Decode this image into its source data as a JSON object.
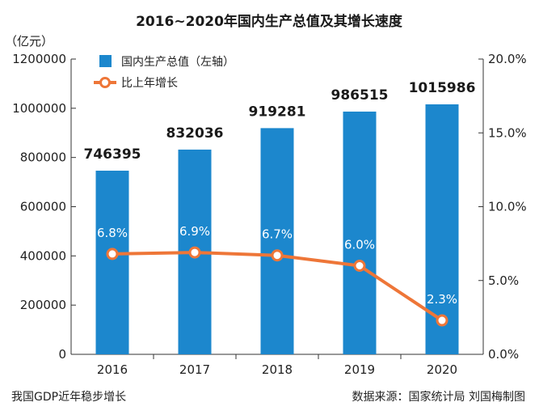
{
  "chart_data": {
    "type": "bar",
    "title": "2016~2020年国内生产总值及其增长速度",
    "ylabel": "（亿元）",
    "categories": [
      "2016",
      "2017",
      "2018",
      "2019",
      "2020"
    ],
    "series": [
      {
        "name": "国内生产总值（左轴）",
        "type": "bar",
        "axis": "left",
        "values": [
          746395,
          832036,
          919281,
          986515,
          1015986
        ],
        "labels": [
          "746395",
          "832036",
          "919281",
          "986515",
          "1015986"
        ]
      },
      {
        "name": "比上年增长",
        "type": "line",
        "axis": "right",
        "values": [
          6.8,
          6.9,
          6.7,
          6.0,
          2.3
        ],
        "labels": [
          "6.8%",
          "6.9%",
          "6.7%",
          "6.0%",
          "2.3%"
        ]
      }
    ],
    "ylim_left": [
      0,
      1200000
    ],
    "yticks_left": [
      "0",
      "200000",
      "400000",
      "600000",
      "800000",
      "1000000",
      "1200000"
    ],
    "ylim_right": [
      0,
      20
    ],
    "yticks_right": [
      "0.0%",
      "5.0%",
      "10.0%",
      "15.0%",
      "20.0%"
    ],
    "legend_position": "top-left",
    "grid": false,
    "colors": {
      "bar": "#1c87cd",
      "line": "#ee7638"
    }
  },
  "footer": {
    "left": "我国GDP近年稳步增长",
    "right": "数据来源：国家统计局  刘国梅制图"
  }
}
